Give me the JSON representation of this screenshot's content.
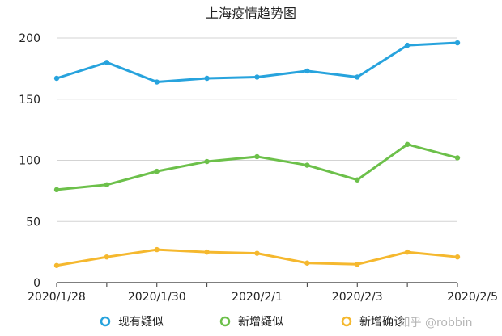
{
  "chart_data": {
    "type": "line",
    "title": "上海疫情趋势图",
    "xlabel": "",
    "ylabel": "",
    "x": [
      "2020/1/28",
      "2020/1/29",
      "2020/1/30",
      "2020/1/31",
      "2020/2/1",
      "2020/2/2",
      "2020/2/3",
      "2020/2/4",
      "2020/2/5"
    ],
    "x_tick_labels": [
      "2020/1/28",
      "2020/1/30",
      "2020/2/1",
      "2020/2/3",
      "2020/2/5"
    ],
    "ylim": [
      0,
      200
    ],
    "y_ticks": [
      0,
      50,
      100,
      150,
      200
    ],
    "grid": true,
    "legend_position": "bottom",
    "series": [
      {
        "name": "现有疑似",
        "color": "#27a3dd",
        "values": [
          167,
          180,
          164,
          167,
          168,
          173,
          168,
          194,
          196
        ]
      },
      {
        "name": "新增疑似",
        "color": "#6cc04a",
        "values": [
          76,
          80,
          91,
          99,
          103,
          96,
          84,
          113,
          102
        ]
      },
      {
        "name": "新增确诊",
        "color": "#f5b82e",
        "values": [
          14,
          21,
          27,
          25,
          24,
          16,
          15,
          25,
          21
        ]
      }
    ]
  },
  "watermark": "知乎 @robbin"
}
